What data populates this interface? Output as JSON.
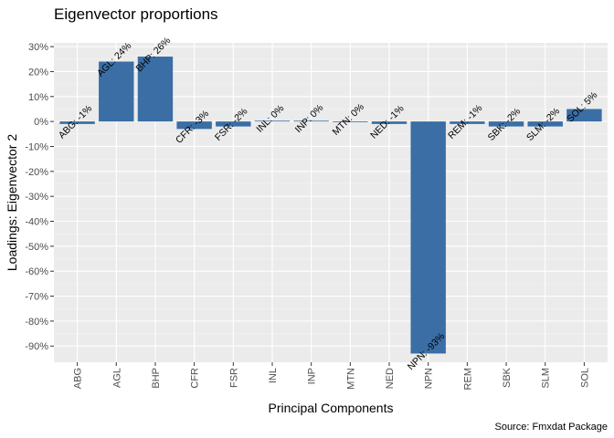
{
  "chart_data": {
    "type": "bar",
    "title": "Eigenvector proportions",
    "xlabel": "Principal Components",
    "ylabel": "Loadings: Eigenvector 2",
    "caption": "Source: Fmxdat Package",
    "categories": [
      "ABG",
      "AGL",
      "BHP",
      "CFR",
      "FSR",
      "INL",
      "INP",
      "MTN",
      "NED",
      "NPN",
      "REM",
      "SBK",
      "SLM",
      "SOL"
    ],
    "values": [
      -1,
      24,
      26,
      -3,
      -2,
      0.3,
      0.3,
      0,
      -1,
      -93,
      -1,
      -2,
      -2,
      5
    ],
    "data_labels": [
      "ABG: -1%",
      "AGL: 24%",
      "BHP: 26%",
      "CFR: -3%",
      "FSR: -2%",
      "INL: 0%",
      "INP: 0%",
      "MTN: 0%",
      "NED: -1%",
      "NPN: -93%",
      "REM: -1%",
      "SBK: -2%",
      "SLM: -2%",
      "SOL: 5%"
    ],
    "y_ticks": [
      30,
      20,
      10,
      0,
      -10,
      -20,
      -30,
      -40,
      -50,
      -60,
      -70,
      -80,
      -90
    ],
    "y_tick_labels": [
      "30%",
      "20%",
      "10%",
      "0%",
      "-10%",
      "-20%",
      "-30%",
      "-40%",
      "-50%",
      "-60%",
      "-70%",
      "-80%",
      "-90%"
    ],
    "ylim": [
      -96.5,
      31.5
    ],
    "grid": true,
    "colors": {
      "bar": "#3a6ea5",
      "panel": "#ebebeb",
      "grid_major": "#ffffff",
      "grid_minor": "#f5f5f5"
    }
  }
}
